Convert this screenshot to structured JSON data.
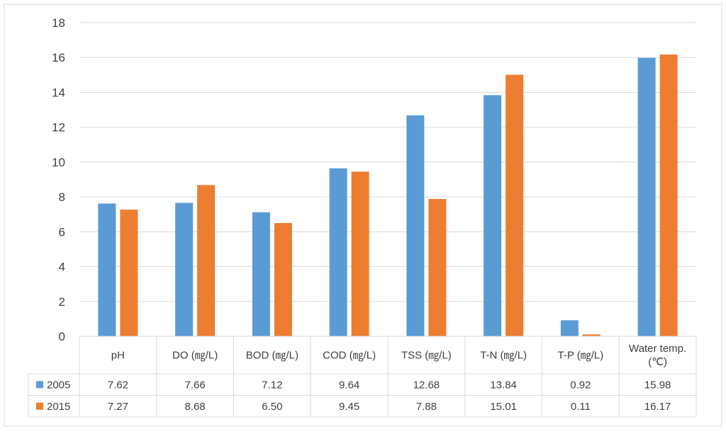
{
  "chart_data": {
    "type": "bar",
    "categories": [
      "pH",
      "DO (㎎/L)",
      "BOD (㎎/L)",
      "COD (㎎/L)",
      "TSS (㎎/L)",
      "T-N (㎎/L)",
      "T-P (㎎/L)",
      "Water temp. (℃)"
    ],
    "category_lines": [
      [
        "pH"
      ],
      [
        "DO (㎎/L)"
      ],
      [
        "BOD (㎎/L)"
      ],
      [
        "COD (㎎/L)"
      ],
      [
        "TSS (㎎/L)"
      ],
      [
        "T-N (㎎/L)"
      ],
      [
        "T-P (㎎/L)"
      ],
      [
        "Water temp.",
        "(℃)"
      ]
    ],
    "series": [
      {
        "name": "2005",
        "color": "#5B9BD5",
        "values": [
          7.62,
          7.66,
          7.12,
          9.64,
          12.68,
          13.84,
          0.92,
          15.98
        ],
        "labels": [
          "7.62",
          "7.66",
          "7.12",
          "9.64",
          "12.68",
          "13.84",
          "0.92",
          "15.98"
        ]
      },
      {
        "name": "2015",
        "color": "#ED7D31",
        "values": [
          7.27,
          8.68,
          6.5,
          9.45,
          7.88,
          15.01,
          0.11,
          16.17
        ],
        "labels": [
          "7.27",
          "8.68",
          "6.50",
          "9.45",
          "7.88",
          "15.01",
          "0.11",
          "16.17"
        ]
      }
    ],
    "ylim": [
      0,
      18
    ],
    "yticks": [
      "0",
      "2",
      "4",
      "6",
      "8",
      "10",
      "12",
      "14",
      "16",
      "18"
    ],
    "grid": true,
    "legend": "data-table",
    "gridline_color": "#D9D9D9",
    "text_color": "#404040"
  }
}
